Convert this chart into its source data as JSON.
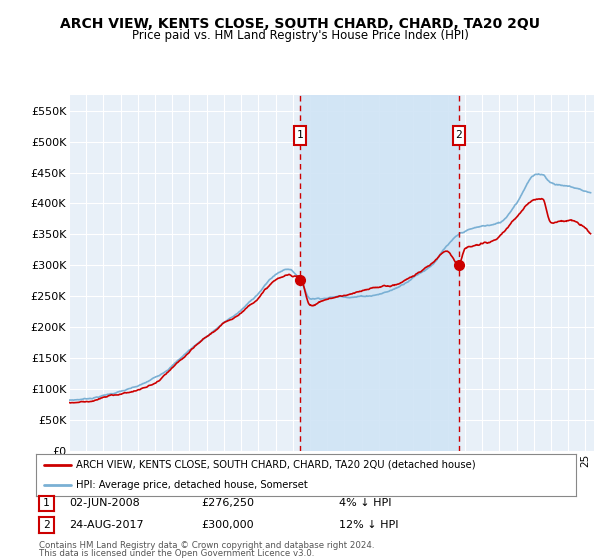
{
  "title": "ARCH VIEW, KENTS CLOSE, SOUTH CHARD, CHARD, TA20 2QU",
  "subtitle": "Price paid vs. HM Land Registry's House Price Index (HPI)",
  "ylim": [
    0,
    575000
  ],
  "yticks": [
    0,
    50000,
    100000,
    150000,
    200000,
    250000,
    300000,
    350000,
    400000,
    450000,
    500000,
    550000
  ],
  "ytick_labels": [
    "£0",
    "£50K",
    "£100K",
    "£150K",
    "£200K",
    "£250K",
    "£300K",
    "£350K",
    "£400K",
    "£450K",
    "£500K",
    "£550K"
  ],
  "hpi_color": "#7ab0d4",
  "price_color": "#cc0000",
  "shade_color": "#d0e4f5",
  "sale1_x": 2008.42,
  "sale1_y": 276250,
  "sale2_x": 2017.64,
  "sale2_y": 300000,
  "sale1_date": "02-JUN-2008",
  "sale1_price": "£276,250",
  "sale1_pct": "4% ↓ HPI",
  "sale2_date": "24-AUG-2017",
  "sale2_price": "£300,000",
  "sale2_pct": "12% ↓ HPI",
  "legend_line1": "ARCH VIEW, KENTS CLOSE, SOUTH CHARD, CHARD, TA20 2QU (detached house)",
  "legend_line2": "HPI: Average price, detached house, Somerset",
  "footer1": "Contains HM Land Registry data © Crown copyright and database right 2024.",
  "footer2": "This data is licensed under the Open Government Licence v3.0.",
  "background_color": "#ffffff",
  "plot_bg_color": "#e8f0f8",
  "grid_color": "#ffffff",
  "xmin": 1995,
  "xmax": 2025.5
}
